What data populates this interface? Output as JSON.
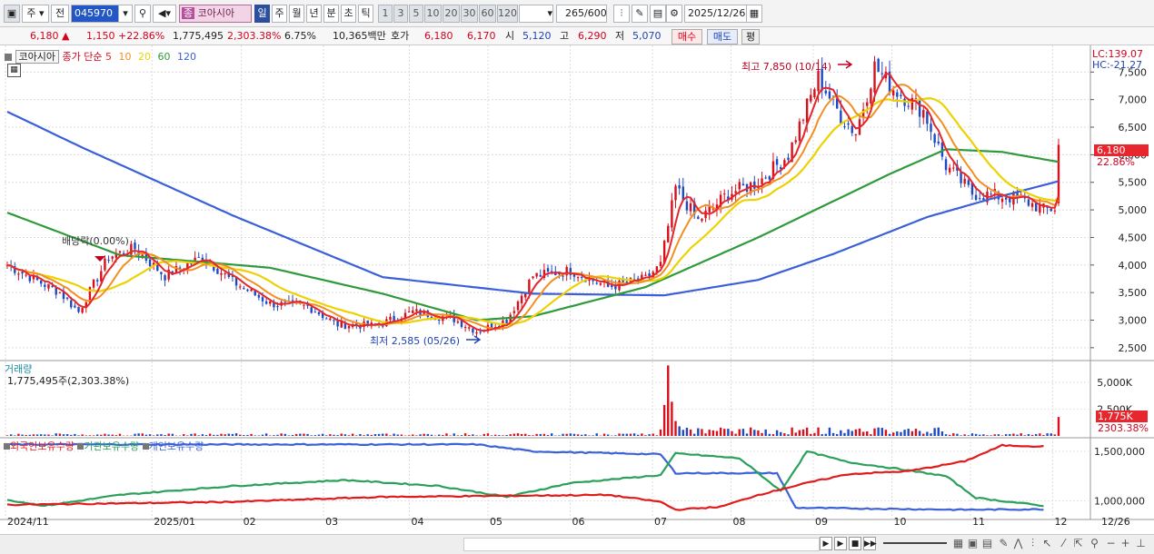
{
  "toolbar": {
    "market_label": "주",
    "prev_label": "전",
    "code": "045970",
    "category_badge": "종",
    "stock_name": "코아시아",
    "periods": [
      "일",
      "주",
      "월",
      "년",
      "분",
      "초",
      "틱"
    ],
    "active_period": "일",
    "minute_options": [
      "1",
      "3",
      "5",
      "10",
      "20",
      "30",
      "60",
      "120"
    ],
    "count_display": "265",
    "count_max": "/600",
    "date": "2025/12/26"
  },
  "info": {
    "price": "6,180",
    "change": "1,150",
    "change_pct": "+22.86%",
    "volume": "1,775,495",
    "volume_ratio": "2,303.38%",
    "turnover": "6.75%",
    "amount": "10,365백만",
    "quote_label": "호가",
    "ask": "6,180",
    "bid": "6,170",
    "open_label": "시",
    "open": "5,120",
    "high_label": "고",
    "high": "6,290",
    "low_label": "저",
    "low": "5,070",
    "buy_label": "매수",
    "sell_label": "매도",
    "eval_label": "평"
  },
  "legend": {
    "stock": "코아시아",
    "close_label": "종가 단순",
    "ma": [
      {
        "period": "5",
        "color": "#e5262a"
      },
      {
        "period": "10",
        "color": "#f28f22"
      },
      {
        "period": "20",
        "color": "#ecd200"
      },
      {
        "period": "60",
        "color": "#2f9a3b"
      },
      {
        "period": "120",
        "color": "#3b5fd8"
      }
    ]
  },
  "corner": {
    "lc": "LC:139.07",
    "hc": "HC:-21.27"
  },
  "volume_legend": {
    "title": "거래량",
    "value": "1,775,495주(2,303.38%)"
  },
  "holdings_legend": [
    {
      "label": "외국인보유수량",
      "color": "#e01b1b"
    },
    {
      "label": "기관보유수량",
      "color": "#2aa05a"
    },
    {
      "label": "개인보유수량",
      "color": "#3b62d6"
    }
  ],
  "annotations": {
    "high": "최고 7,850 (10/14)",
    "low": "최저 2,585 (05/26)",
    "dividend": "배당락(0.00%)"
  },
  "price_tag": {
    "price": "6,180",
    "pct": "22.86%"
  },
  "volume_tag": {
    "value": "1,775K",
    "pct": "2303.38%"
  },
  "x_axis": [
    "2024/11",
    "2025/01",
    "02",
    "03",
    "04",
    "05",
    "06",
    "07",
    "08",
    "09",
    "10",
    "11",
    "12"
  ],
  "x_axis_end": "12/26",
  "colors": {
    "up": "#d6101c",
    "down": "#1f49c2",
    "ma5": "#e5262a",
    "ma10": "#f28f22",
    "ma20": "#ecd200",
    "ma60": "#2f9a3b",
    "ma120": "#3b5fd8",
    "price_tag_bg": "#e8262d"
  },
  "chart_data": {
    "type": "candlestick",
    "price_axis": {
      "ticks": [
        2500,
        3000,
        3500,
        4000,
        4500,
        5000,
        5500,
        6000,
        6500,
        7000,
        7500
      ],
      "ylim": [
        2300,
        7950
      ]
    },
    "volume_axis": {
      "ticks": [
        "2,500K",
        "5,000K"
      ],
      "ylim": [
        0,
        6800
      ]
    },
    "holdings_axis": {
      "ticks": [
        "1,000,000",
        "1,500,000"
      ],
      "ylim": [
        830000,
        1610000
      ]
    },
    "close_series_anchor": [
      [
        0,
        4000
      ],
      [
        14,
        3500
      ],
      [
        19,
        3150
      ],
      [
        27,
        4150
      ],
      [
        34,
        4300
      ],
      [
        42,
        3800
      ],
      [
        52,
        4150
      ],
      [
        60,
        3700
      ],
      [
        70,
        3300
      ],
      [
        80,
        3250
      ],
      [
        88,
        2920
      ],
      [
        98,
        2900
      ],
      [
        108,
        3150
      ],
      [
        118,
        3050
      ],
      [
        125,
        2800
      ],
      [
        133,
        3000
      ],
      [
        140,
        3800
      ],
      [
        150,
        3900
      ],
      [
        160,
        3600
      ],
      [
        170,
        3750
      ],
      [
        174,
        4000
      ],
      [
        178,
        5400
      ],
      [
        184,
        4800
      ],
      [
        192,
        5300
      ],
      [
        200,
        5500
      ],
      [
        208,
        6000
      ],
      [
        216,
        7400
      ],
      [
        222,
        6700
      ],
      [
        226,
        6400
      ],
      [
        231,
        7600
      ],
      [
        236,
        7200
      ],
      [
        244,
        6800
      ],
      [
        250,
        5800
      ],
      [
        257,
        5300
      ],
      [
        264,
        5250
      ],
      [
        270,
        5200
      ],
      [
        276,
        5000
      ],
      [
        279,
        5030
      ],
      [
        280,
        6180
      ]
    ],
    "ma_anchor": {
      "ma60": [
        [
          0,
          4950
        ],
        [
          30,
          4180
        ],
        [
          70,
          3950
        ],
        [
          100,
          3480
        ],
        [
          125,
          3000
        ],
        [
          140,
          3070
        ],
        [
          170,
          3600
        ],
        [
          200,
          4500
        ],
        [
          235,
          5650
        ],
        [
          250,
          6100
        ],
        [
          265,
          6050
        ],
        [
          280,
          5870
        ]
      ],
      "ma120": [
        [
          0,
          6780
        ],
        [
          20,
          6130
        ],
        [
          60,
          4900
        ],
        [
          100,
          3780
        ],
        [
          140,
          3480
        ],
        [
          175,
          3450
        ],
        [
          200,
          3730
        ],
        [
          220,
          4200
        ],
        [
          245,
          4870
        ],
        [
          262,
          5200
        ],
        [
          280,
          5520
        ]
      ]
    },
    "holdings_anchor": {
      "foreign": [
        [
          0,
          960000
        ],
        [
          60,
          990000
        ],
        [
          100,
          1040000
        ],
        [
          160,
          1060000
        ],
        [
          174,
          990000
        ],
        [
          178,
          910000
        ],
        [
          190,
          940000
        ],
        [
          200,
          1060000
        ],
        [
          214,
          1190000
        ],
        [
          224,
          1270000
        ],
        [
          240,
          1300000
        ],
        [
          255,
          1400000
        ],
        [
          265,
          1560000
        ],
        [
          276,
          1550000
        ]
      ],
      "institution": [
        [
          0,
          1010000
        ],
        [
          10,
          950000
        ],
        [
          30,
          1060000
        ],
        [
          60,
          1150000
        ],
        [
          90,
          1210000
        ],
        [
          115,
          1150000
        ],
        [
          133,
          1040000
        ],
        [
          150,
          1180000
        ],
        [
          174,
          1260000
        ],
        [
          178,
          1480000
        ],
        [
          195,
          1430000
        ],
        [
          206,
          1100000
        ],
        [
          213,
          1500000
        ],
        [
          224,
          1390000
        ],
        [
          236,
          1330000
        ],
        [
          250,
          1250000
        ],
        [
          258,
          1030000
        ],
        [
          276,
          950000
        ]
      ],
      "individual": [
        [
          0,
          1570000
        ],
        [
          125,
          1570000
        ],
        [
          140,
          1500000
        ],
        [
          174,
          1470000
        ],
        [
          178,
          1280000
        ],
        [
          205,
          1280000
        ],
        [
          210,
          930000
        ],
        [
          255,
          910000
        ],
        [
          276,
          915000
        ]
      ]
    }
  }
}
